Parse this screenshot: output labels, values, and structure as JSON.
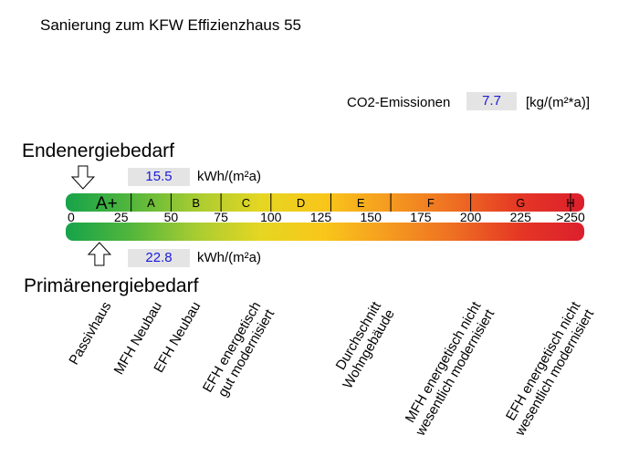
{
  "title": "Sanierung zum KFW Effizienzhaus 55",
  "co2": {
    "label": "CO2-Emissionen",
    "value": "7.7",
    "unit": "[kg/(m²*a)]"
  },
  "endenergie": {
    "title": "Endenergiebedarf",
    "value": "15.5",
    "unit": "kWh/(m²a)",
    "scale_value": 15.5
  },
  "primaerenergie": {
    "title": "Primärenergiebedarf",
    "value": "22.8",
    "unit": "kWh/(m²a)",
    "scale_value": 22.8
  },
  "scale": {
    "classes": [
      "A+",
      "A",
      "B",
      "C",
      "D",
      "E",
      "F",
      "G",
      "H"
    ],
    "class_bounds": [
      0,
      30,
      50,
      75,
      100,
      130,
      160,
      200,
      250,
      260
    ],
    "ticks": [
      "0",
      "25",
      "50",
      "75",
      "100",
      "125",
      "150",
      "175",
      "200",
      "225",
      ">250"
    ],
    "colors": [
      "#16a34a",
      "#52b63c",
      "#a7cc32",
      "#e5d622",
      "#f9c61a",
      "#f59a20",
      "#ee6e22",
      "#e53725",
      "#dc1f2d"
    ]
  },
  "building_types": [
    {
      "lines": [
        "Passivhaus"
      ],
      "value": 15
    },
    {
      "lines": [
        "MFH Neubau"
      ],
      "value": 40
    },
    {
      "lines": [
        "EFH Neubau"
      ],
      "value": 60
    },
    {
      "lines": [
        "EFH energetisch",
        "gut modernisiert"
      ],
      "value": 90
    },
    {
      "lines": [
        "Durchschnitt",
        "Wohngebäude"
      ],
      "value": 150
    },
    {
      "lines": [
        "MFH energetisch nicht",
        "wesentlich modernisiert"
      ],
      "value": 200
    },
    {
      "lines": [
        "EFH energetisch nicht",
        "wesentlich modernisiert"
      ],
      "value": 250
    }
  ]
}
